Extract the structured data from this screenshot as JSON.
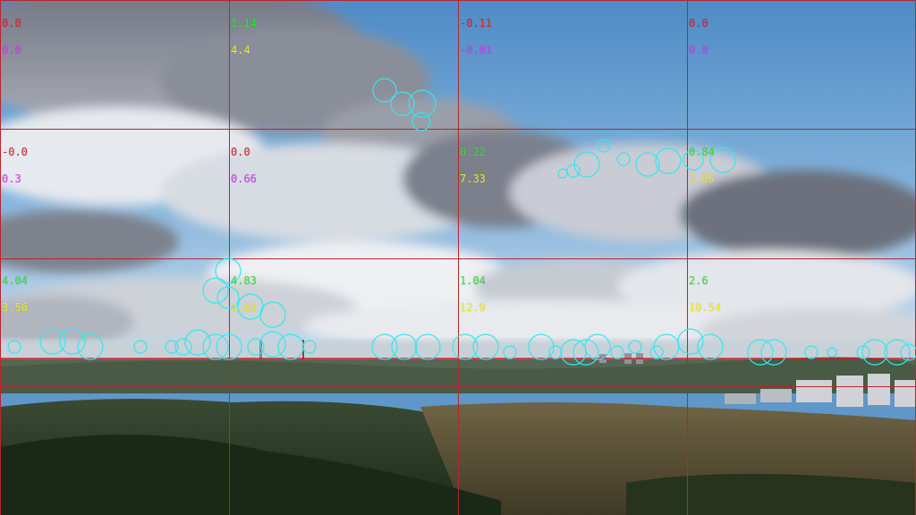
{
  "colors": {
    "grid_line": "#b3282d",
    "horizon_line": "#c81e1e",
    "feature_circle": "#36e6ee",
    "label_red": "#e0242a",
    "label_green": "#37e13a",
    "label_magenta": "#d43cf0",
    "label_yellow": "#f2ec2a"
  },
  "cells": [
    {
      "a": "0.0",
      "a_color": "label_red",
      "b": "0.0",
      "b_color": "label_magenta"
    },
    {
      "a": "1.14",
      "a_color": "label_green",
      "b": "4.4",
      "b_color": "label_yellow"
    },
    {
      "a": "-0.11",
      "a_color": "label_red",
      "b": "-0.01",
      "b_color": "label_magenta"
    },
    {
      "a": "0.0",
      "a_color": "label_red",
      "b": "0.0",
      "b_color": "label_magenta"
    },
    {
      "a": "-0.0",
      "a_color": "label_red",
      "b": "0.3",
      "b_color": "label_magenta"
    },
    {
      "a": "0.0",
      "a_color": "label_red",
      "b": "0.66",
      "b_color": "label_magenta"
    },
    {
      "a": "0.22",
      "a_color": "label_green",
      "b": "7.33",
      "b_color": "label_yellow"
    },
    {
      "a": "0.84",
      "a_color": "label_green",
      "b": "3.06",
      "b_color": "label_yellow"
    },
    {
      "a": "4.04",
      "a_color": "label_green",
      "b": "3.56",
      "b_color": "label_yellow"
    },
    {
      "a": "4.83",
      "a_color": "label_green",
      "b": "2.62",
      "b_color": "label_yellow"
    },
    {
      "a": "1.04",
      "a_color": "label_green",
      "b": "12.9",
      "b_color": "label_yellow"
    },
    {
      "a": "2.6",
      "a_color": "label_green",
      "b": "10.54",
      "b_color": "label_yellow"
    }
  ]
}
